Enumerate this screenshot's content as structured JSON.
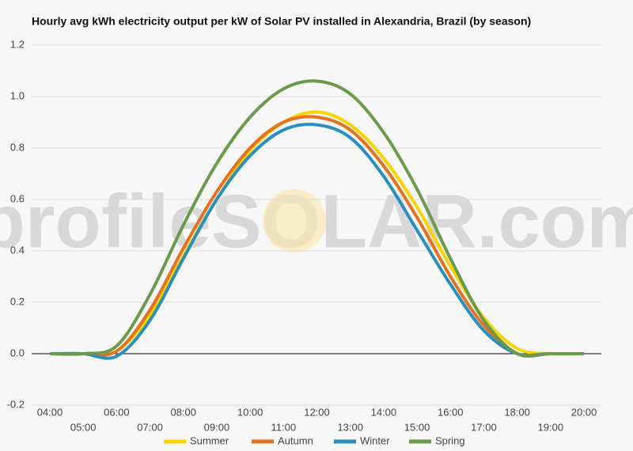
{
  "chart_data": {
    "type": "line",
    "title": "Hourly avg kWh electricity output per kW of Solar PV installed in Alexandria, Brazil (by season)",
    "watermark": "profileSOLAR.com",
    "categories": [
      "04:00",
      "05:00",
      "06:00",
      "07:00",
      "08:00",
      "09:00",
      "10:00",
      "11:00",
      "12:00",
      "13:00",
      "14:00",
      "15:00",
      "16:00",
      "17:00",
      "18:00",
      "19:00",
      "20:00"
    ],
    "series": [
      {
        "name": "Summer",
        "color": "#fad400",
        "values": [
          0,
          0,
          0.01,
          0.15,
          0.38,
          0.6,
          0.79,
          0.9,
          0.94,
          0.89,
          0.76,
          0.57,
          0.34,
          0.14,
          0.02,
          0,
          0
        ]
      },
      {
        "name": "Autumn",
        "color": "#e5721f",
        "values": [
          0,
          0,
          0.01,
          0.17,
          0.41,
          0.63,
          0.8,
          0.9,
          0.92,
          0.87,
          0.73,
          0.53,
          0.3,
          0.11,
          0,
          0,
          0
        ]
      },
      {
        "name": "Winter",
        "color": "#2a8fbf",
        "values": [
          0,
          0,
          -0.01,
          0.13,
          0.37,
          0.6,
          0.77,
          0.87,
          0.89,
          0.84,
          0.69,
          0.48,
          0.27,
          0.09,
          0,
          0,
          0
        ]
      },
      {
        "name": "Spring",
        "color": "#6a9a4b",
        "values": [
          0,
          0,
          0.03,
          0.23,
          0.5,
          0.74,
          0.92,
          1.03,
          1.06,
          1.01,
          0.86,
          0.64,
          0.37,
          0.13,
          0,
          0,
          0
        ]
      }
    ],
    "ylim": [
      -0.2,
      1.2
    ],
    "yticks": [
      -0.2,
      {
        "value": 0,
        "label": "0.0"
      },
      0.2,
      0.4,
      0.6,
      0.8,
      {
        "value": 1,
        "label": "1.0"
      },
      1.2
    ],
    "grid": true,
    "legend": "bottom"
  }
}
